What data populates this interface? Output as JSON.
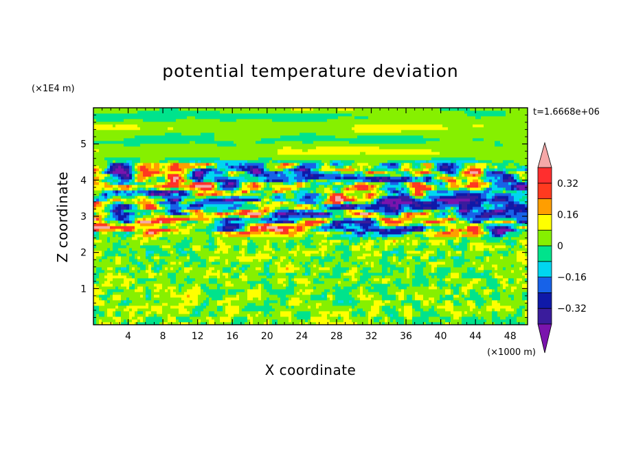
{
  "chart_data": {
    "type": "heatmap",
    "title": "potential temperature deviation",
    "xlabel": "X coordinate",
    "ylabel": "Z coordinate",
    "x_unit": "(×1000 m)",
    "y_unit": "(×1E4 m)",
    "time_label": "t=1.6668e+06",
    "xlim": [
      0,
      50
    ],
    "ylim": [
      0,
      6
    ],
    "x_ticks": [
      4,
      8,
      12,
      16,
      20,
      24,
      28,
      32,
      36,
      40,
      44,
      48
    ],
    "x_tick_labels": [
      "4",
      "8",
      "12",
      "16",
      "20",
      "24",
      "28",
      "32",
      "36",
      "40",
      "44",
      "48"
    ],
    "y_ticks": [
      1,
      2,
      3,
      4,
      5
    ],
    "y_tick_labels": [
      "1",
      "2",
      "3",
      "4",
      "5"
    ],
    "colorbar": {
      "levels": [
        -0.4,
        -0.32,
        -0.24,
        -0.16,
        -0.08,
        0,
        0.08,
        0.16,
        0.24,
        0.32,
        0.4
      ],
      "tick_values": [
        -0.32,
        -0.16,
        0,
        0.16,
        0.32
      ],
      "tick_labels": [
        "−0.32",
        "−0.16",
        "0",
        "0.16",
        "0.32"
      ],
      "colors": [
        "#7a14ad",
        "#3a1c9c",
        "#0f19a8",
        "#1762e8",
        "#00d6f0",
        "#00e38c",
        "#86f000",
        "#ffff00",
        "#ff9e00",
        "#ff3a1f",
        "#ff2e2e",
        "#f5a8a8"
      ],
      "extend": "both"
    }
  }
}
